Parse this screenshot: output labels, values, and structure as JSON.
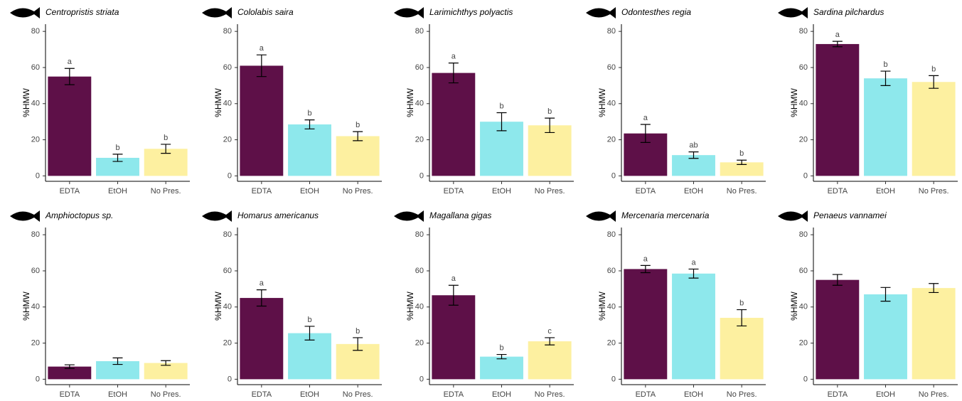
{
  "chart_data": [
    {
      "type": "bar",
      "title": "Centropristis striata",
      "ylabel": "%HMW",
      "categories": [
        "EDTA",
        "EtOH",
        "No Pres."
      ],
      "values": [
        55,
        10,
        15
      ],
      "errors": [
        4.5,
        2,
        2.5
      ],
      "letters": [
        "a",
        "b",
        "b"
      ],
      "colors": [
        "#5e1048",
        "#8ee8ec",
        "#fdf0a0"
      ],
      "ylim": [
        -3,
        84
      ],
      "yticks": [
        0,
        20,
        40,
        60,
        80
      ]
    },
    {
      "type": "bar",
      "title": "Cololabis saira",
      "ylabel": "%HMW",
      "categories": [
        "EDTA",
        "EtOH",
        "No Pres."
      ],
      "values": [
        61,
        28.5,
        22
      ],
      "errors": [
        6,
        2.5,
        2.5
      ],
      "letters": [
        "a",
        "b",
        "b"
      ],
      "colors": [
        "#5e1048",
        "#8ee8ec",
        "#fdf0a0"
      ],
      "ylim": [
        -3,
        84
      ],
      "yticks": [
        0,
        20,
        40,
        60,
        80
      ]
    },
    {
      "type": "bar",
      "title": "Larimichthys polyactis",
      "ylabel": "%HMW",
      "categories": [
        "EDTA",
        "EtOH",
        "No Pres."
      ],
      "values": [
        57,
        30,
        28
      ],
      "errors": [
        5.5,
        5,
        4
      ],
      "letters": [
        "a",
        "b",
        "b"
      ],
      "colors": [
        "#5e1048",
        "#8ee8ec",
        "#fdf0a0"
      ],
      "ylim": [
        -3,
        84
      ],
      "yticks": [
        0,
        20,
        40,
        60,
        80
      ]
    },
    {
      "type": "bar",
      "title": "Odontesthes regia",
      "ylabel": "%HMW",
      "categories": [
        "EDTA",
        "EtOH",
        "No Pres."
      ],
      "values": [
        23.5,
        11.5,
        7.5
      ],
      "errors": [
        5,
        1.8,
        1.2
      ],
      "letters": [
        "a",
        "ab",
        "b"
      ],
      "colors": [
        "#5e1048",
        "#8ee8ec",
        "#fdf0a0"
      ],
      "ylim": [
        -3,
        84
      ],
      "yticks": [
        0,
        20,
        40,
        60,
        80
      ]
    },
    {
      "type": "bar",
      "title": "Sardina pilchardus",
      "ylabel": "%HMW",
      "categories": [
        "EDTA",
        "EtOH",
        "No Pres."
      ],
      "values": [
        73,
        54,
        52
      ],
      "errors": [
        1.5,
        4,
        3.5
      ],
      "letters": [
        "a",
        "b",
        "b"
      ],
      "colors": [
        "#5e1048",
        "#8ee8ec",
        "#fdf0a0"
      ],
      "ylim": [
        -3,
        84
      ],
      "yticks": [
        0,
        20,
        40,
        60,
        80
      ]
    },
    {
      "type": "bar",
      "title": "Amphioctopus sp.",
      "ylabel": "%HMW",
      "categories": [
        "EDTA",
        "EtOH",
        "No Pres."
      ],
      "values": [
        7,
        10,
        9
      ],
      "errors": [
        1,
        1.8,
        1.3
      ],
      "colors": [
        "#5e1048",
        "#8ee8ec",
        "#fdf0a0"
      ],
      "ylim": [
        -3,
        84
      ],
      "yticks": [
        0,
        20,
        40,
        60,
        80
      ]
    },
    {
      "type": "bar",
      "title": "Homarus americanus",
      "ylabel": "%HMW",
      "categories": [
        "EDTA",
        "EtOH",
        "No Pres."
      ],
      "values": [
        45,
        25.5,
        19.5
      ],
      "errors": [
        4.5,
        3.8,
        3.5
      ],
      "letters": [
        "a",
        "b",
        "b"
      ],
      "colors": [
        "#5e1048",
        "#8ee8ec",
        "#fdf0a0"
      ],
      "ylim": [
        -3,
        84
      ],
      "yticks": [
        0,
        20,
        40,
        60,
        80
      ]
    },
    {
      "type": "bar",
      "title": "Magallana gigas",
      "ylabel": "%HMW",
      "categories": [
        "EDTA",
        "EtOH",
        "No Pres."
      ],
      "values": [
        46.5,
        12.5,
        21
      ],
      "errors": [
        5.5,
        1.2,
        2
      ],
      "letters": [
        "a",
        "b",
        "c"
      ],
      "colors": [
        "#5e1048",
        "#8ee8ec",
        "#fdf0a0"
      ],
      "ylim": [
        -3,
        84
      ],
      "yticks": [
        0,
        20,
        40,
        60,
        80
      ]
    },
    {
      "type": "bar",
      "title": "Mercenaria mercenaria",
      "ylabel": "%HMW",
      "categories": [
        "EDTA",
        "EtOH",
        "No Pres."
      ],
      "values": [
        61,
        58.5,
        34
      ],
      "errors": [
        2,
        2.5,
        4.5
      ],
      "letters": [
        "a",
        "a",
        "b"
      ],
      "colors": [
        "#5e1048",
        "#8ee8ec",
        "#fdf0a0"
      ],
      "ylim": [
        -3,
        84
      ],
      "yticks": [
        0,
        20,
        40,
        60,
        80
      ]
    },
    {
      "type": "bar",
      "title": "Penaeus vannamei",
      "ylabel": "%HMW",
      "categories": [
        "EDTA",
        "EtOH",
        "No Pres."
      ],
      "values": [
        55,
        47,
        50.5
      ],
      "errors": [
        3,
        3.8,
        2.5
      ],
      "colors": [
        "#5e1048",
        "#8ee8ec",
        "#fdf0a0"
      ],
      "ylim": [
        -3,
        84
      ],
      "yticks": [
        0,
        20,
        40,
        60,
        80
      ]
    }
  ]
}
